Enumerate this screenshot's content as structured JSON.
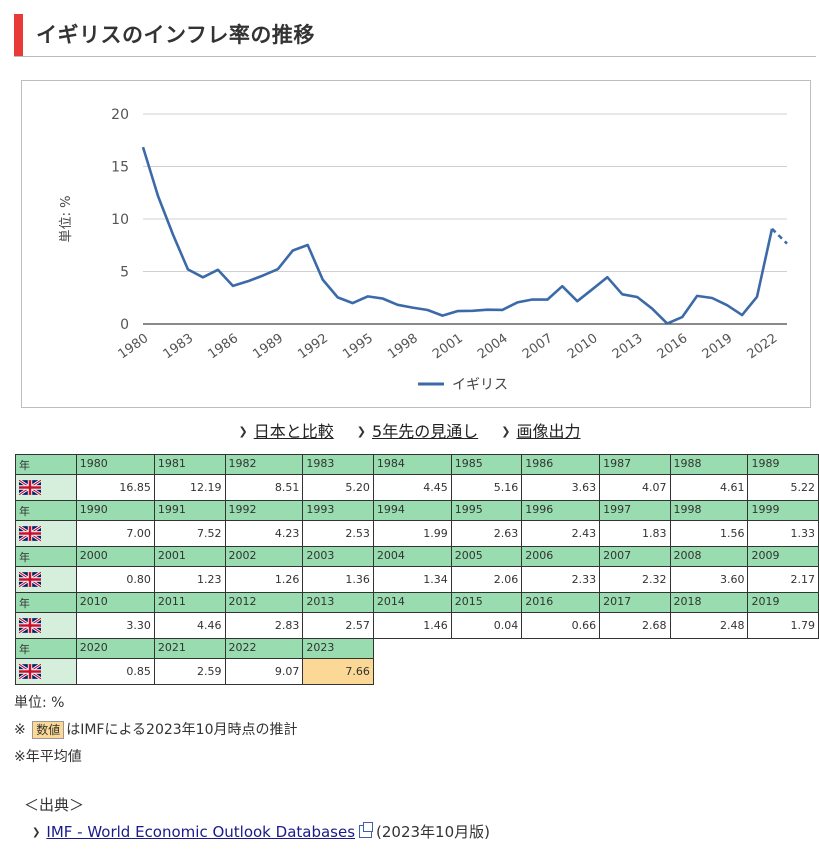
{
  "page": {
    "title": "イギリスのインフレ率の推移"
  },
  "links": [
    {
      "label": "日本と比較"
    },
    {
      "label": "5年先の見通し"
    },
    {
      "label": "画像出力"
    }
  ],
  "chart_data": {
    "type": "line",
    "ylabel": "単位: %",
    "ylim": [
      0,
      20
    ],
    "yticks": [
      0,
      5,
      10,
      15,
      20
    ],
    "xticks": [
      1980,
      1983,
      1986,
      1989,
      1992,
      1995,
      1998,
      2001,
      2004,
      2007,
      2010,
      2013,
      2016,
      2019,
      2022
    ],
    "legend_position": "bottom",
    "color": "#3c6aa9",
    "series": [
      {
        "name": "イギリス",
        "x": [
          1980,
          1981,
          1982,
          1983,
          1984,
          1985,
          1986,
          1987,
          1988,
          1989,
          1990,
          1991,
          1992,
          1993,
          1994,
          1995,
          1996,
          1997,
          1998,
          1999,
          2000,
          2001,
          2002,
          2003,
          2004,
          2005,
          2006,
          2007,
          2008,
          2009,
          2010,
          2011,
          2012,
          2013,
          2014,
          2015,
          2016,
          2017,
          2018,
          2019,
          2020,
          2021,
          2022,
          2023
        ],
        "values": [
          16.85,
          12.19,
          8.51,
          5.2,
          4.45,
          5.16,
          3.63,
          4.07,
          4.61,
          5.22,
          7.0,
          7.52,
          4.23,
          2.53,
          1.99,
          2.63,
          2.43,
          1.83,
          1.56,
          1.33,
          0.8,
          1.23,
          1.26,
          1.36,
          1.34,
          2.06,
          2.33,
          2.32,
          3.6,
          2.17,
          3.3,
          4.46,
          2.83,
          2.57,
          1.46,
          0.04,
          0.66,
          2.68,
          2.48,
          1.79,
          0.85,
          2.59,
          9.07,
          7.66
        ],
        "estimate_from": 2022
      }
    ]
  },
  "table": {
    "year_header": "年",
    "country": "イギリス",
    "rows": [
      {
        "years": [
          "1980",
          "1981",
          "1982",
          "1983",
          "1984",
          "1985",
          "1986",
          "1987",
          "1988",
          "1989"
        ],
        "values": [
          "16.85",
          "12.19",
          "8.51",
          "5.20",
          "4.45",
          "5.16",
          "3.63",
          "4.07",
          "4.61",
          "5.22"
        ]
      },
      {
        "years": [
          "1990",
          "1991",
          "1992",
          "1993",
          "1994",
          "1995",
          "1996",
          "1997",
          "1998",
          "1999"
        ],
        "values": [
          "7.00",
          "7.52",
          "4.23",
          "2.53",
          "1.99",
          "2.63",
          "2.43",
          "1.83",
          "1.56",
          "1.33"
        ]
      },
      {
        "years": [
          "2000",
          "2001",
          "2002",
          "2003",
          "2004",
          "2005",
          "2006",
          "2007",
          "2008",
          "2009"
        ],
        "values": [
          "0.80",
          "1.23",
          "1.26",
          "1.36",
          "1.34",
          "2.06",
          "2.33",
          "2.32",
          "3.60",
          "2.17"
        ]
      },
      {
        "years": [
          "2010",
          "2011",
          "2012",
          "2013",
          "2014",
          "2015",
          "2016",
          "2017",
          "2018",
          "2019"
        ],
        "values": [
          "3.30",
          "4.46",
          "2.83",
          "2.57",
          "1.46",
          "0.04",
          "0.66",
          "2.68",
          "2.48",
          "1.79"
        ]
      },
      {
        "years": [
          "2020",
          "2021",
          "2022",
          "2023"
        ],
        "values": [
          "0.85",
          "2.59",
          "9.07",
          "7.66"
        ]
      }
    ],
    "estimate_years": [
      "2023"
    ]
  },
  "notes": {
    "unit": "単位: %",
    "estimate_prefix": "※",
    "estimate_badge": "数値",
    "estimate_text": "はIMFによる2023年10月時点の推計",
    "average": "※年平均値"
  },
  "source": {
    "heading": "＜出典＞",
    "link_label": "IMF - World Economic Outlook Databases",
    "edition": "(2023年10月版)"
  }
}
